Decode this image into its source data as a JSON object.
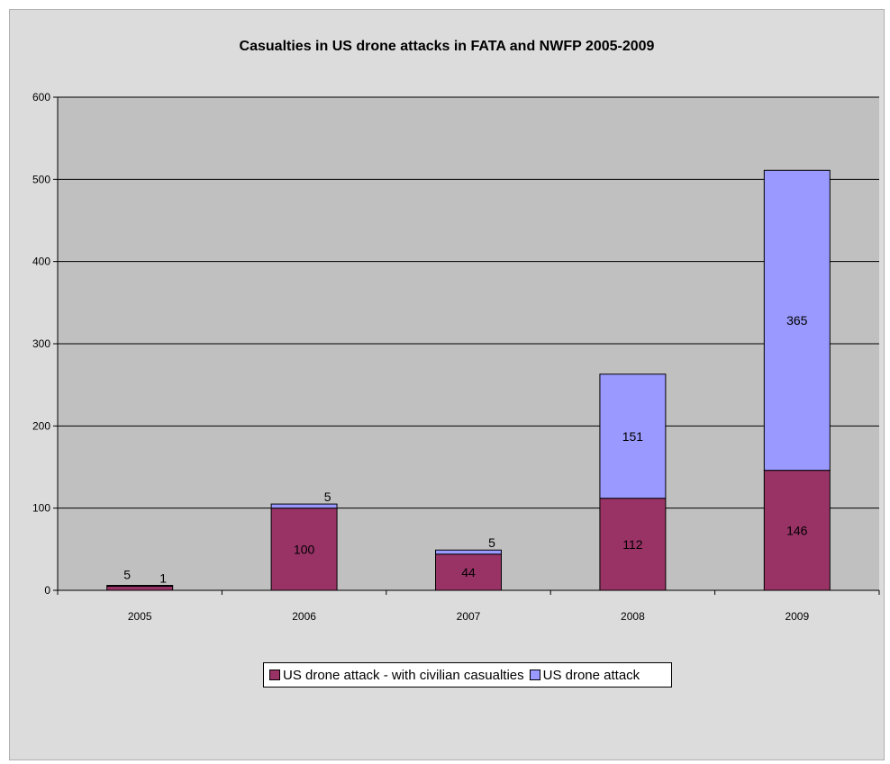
{
  "chart_data": {
    "type": "bar",
    "stacked": true,
    "title": "Casualties in US drone attacks in FATA and NWFP 2005-2009",
    "xlabel": "",
    "ylabel": "",
    "categories": [
      "2005",
      "2006",
      "2007",
      "2008",
      "2009"
    ],
    "ylim": [
      0,
      600
    ],
    "yticks": [
      "0",
      "100",
      "200",
      "300",
      "400",
      "500",
      "600"
    ],
    "grid": true,
    "legend": "bottom",
    "series": [
      {
        "name": "US drone attack - with civilian casualties",
        "color": "#993366",
        "values": [
          5,
          100,
          44,
          112,
          146
        ],
        "labels": [
          "5",
          "100",
          "44",
          "112",
          "146"
        ]
      },
      {
        "name": "US drone attack",
        "color": "#9999ff",
        "values": [
          1,
          5,
          5,
          151,
          365
        ],
        "labels": [
          "1",
          "5",
          "5",
          "151",
          "365"
        ]
      }
    ],
    "plot_background": "#c0c0c0"
  }
}
